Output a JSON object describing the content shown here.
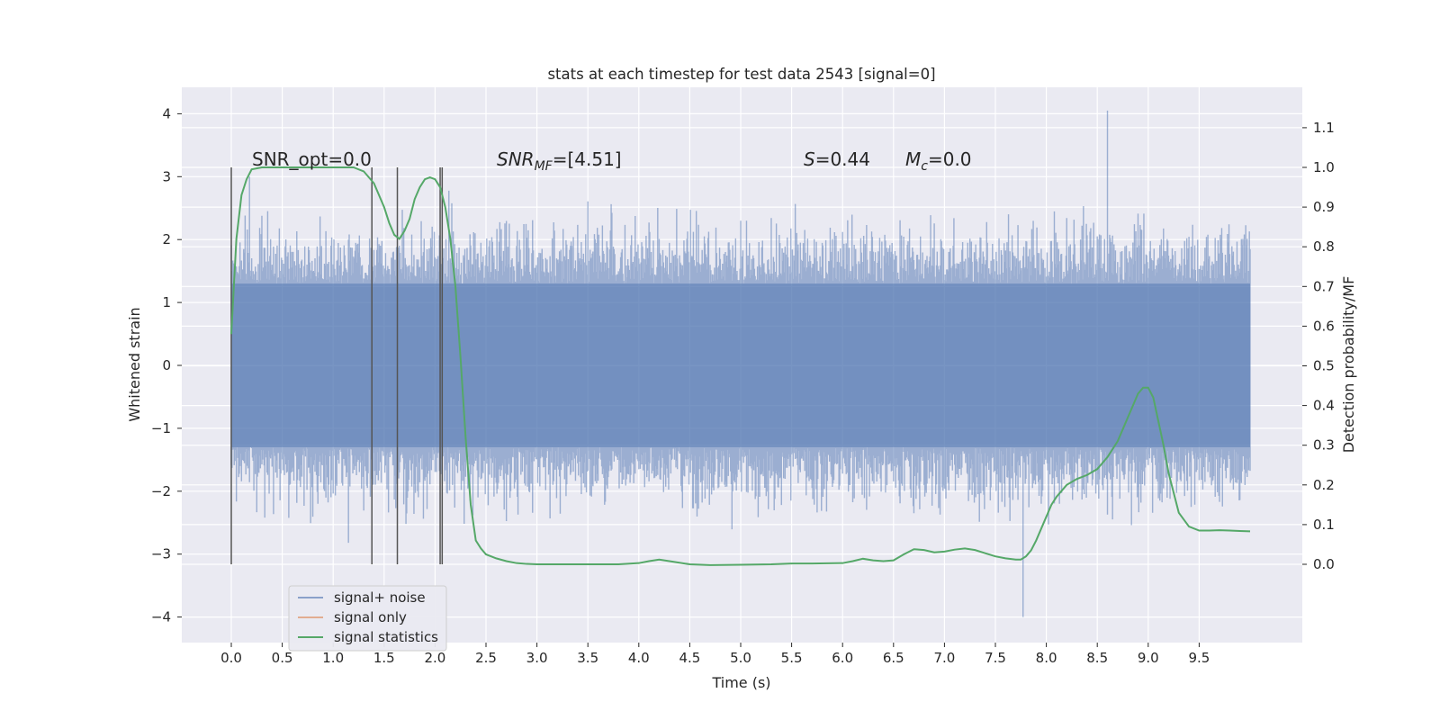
{
  "chart_data": {
    "type": "line",
    "title": "stats at each timestep for test data 2543 [signal=0]",
    "xlabel": "Time (s)",
    "ylabel": "Whitened strain",
    "y2label": "Detection probability/MF",
    "xlim": [
      -0.48,
      10.5
    ],
    "ylim": [
      -4.4,
      4.4
    ],
    "y2lim": [
      -0.2,
      1.2
    ],
    "xticks": [
      "0.0",
      "0.5",
      "1.0",
      "1.5",
      "2.0",
      "2.5",
      "3.0",
      "3.5",
      "4.0",
      "4.5",
      "5.0",
      "5.5",
      "6.0",
      "6.5",
      "7.0",
      "7.5",
      "8.0",
      "8.5",
      "9.0",
      "9.5"
    ],
    "yticks": [
      "4",
      "3",
      "2",
      "1",
      "0",
      "−1",
      "−2",
      "−3",
      "−4"
    ],
    "y2ticks": [
      "1.1",
      "1.0",
      "0.9",
      "0.8",
      "0.7",
      "0.6",
      "0.5",
      "0.4",
      "0.3",
      "0.2",
      "0.1",
      "0.0"
    ],
    "grid": true,
    "legend_position": "lower-left",
    "background": "#eaeaf2",
    "colors": {
      "noise": "#4c72b0",
      "signal_only": "#dd8452",
      "statistics": "#55a868",
      "vlines": "#555555"
    },
    "annotations": {
      "snr_opt": "SNR_opt=0.0",
      "snr_mf_main": "SNR",
      "snr_mf_sub": "MF",
      "snr_mf_rest": "=[4.51]",
      "s_main": "S",
      "s_rest": "=0.44",
      "mc_main": "M",
      "mc_sub": "c",
      "mc_rest": "=0.0"
    },
    "vertical_lines": [
      0.0,
      1.38,
      1.63,
      2.05,
      2.07
    ],
    "noise": {
      "name": "signal+ noise",
      "x_range": [
        0.0,
        10.0
      ],
      "typical_band": [
        -1.3,
        1.3
      ],
      "max_peak": [
        8.6,
        4.05
      ],
      "min_peak": [
        7.77,
        -4.0
      ]
    },
    "series": [
      {
        "name": "signal+ noise",
        "kind": "noise"
      },
      {
        "name": "signal only",
        "kind": "line",
        "x": [],
        "y": []
      },
      {
        "name": "signal statistics",
        "kind": "line",
        "axis": "right",
        "x": [
          0.0,
          0.05,
          0.1,
          0.15,
          0.2,
          0.3,
          0.4,
          0.5,
          0.6,
          0.7,
          0.8,
          0.9,
          1.0,
          1.1,
          1.2,
          1.3,
          1.4,
          1.5,
          1.55,
          1.6,
          1.65,
          1.7,
          1.75,
          1.8,
          1.85,
          1.9,
          1.95,
          2.0,
          2.05,
          2.1,
          2.15,
          2.2,
          2.25,
          2.3,
          2.35,
          2.4,
          2.45,
          2.5,
          2.55,
          2.6,
          2.7,
          2.8,
          2.9,
          3.0,
          3.2,
          3.5,
          3.8,
          4.0,
          4.1,
          4.2,
          4.3,
          4.5,
          4.7,
          5.0,
          5.3,
          5.5,
          5.7,
          6.0,
          6.1,
          6.2,
          6.3,
          6.4,
          6.5,
          6.6,
          6.7,
          6.8,
          6.9,
          7.0,
          7.1,
          7.2,
          7.3,
          7.4,
          7.5,
          7.6,
          7.7,
          7.75,
          7.8,
          7.85,
          7.9,
          7.95,
          8.0,
          8.05,
          8.1,
          8.2,
          8.3,
          8.4,
          8.5,
          8.6,
          8.7,
          8.75,
          8.8,
          8.85,
          8.9,
          8.95,
          9.0,
          9.05,
          9.1,
          9.15,
          9.2,
          9.3,
          9.4,
          9.5,
          9.6,
          9.7,
          9.8,
          9.9,
          10.0
        ],
        "y": [
          0.58,
          0.82,
          0.93,
          0.97,
          0.995,
          1.0,
          1.0,
          1.0,
          1.0,
          1.0,
          1.0,
          1.0,
          1.0,
          1.0,
          1.0,
          0.99,
          0.96,
          0.9,
          0.86,
          0.83,
          0.82,
          0.84,
          0.87,
          0.92,
          0.95,
          0.97,
          0.975,
          0.97,
          0.95,
          0.9,
          0.82,
          0.7,
          0.52,
          0.32,
          0.15,
          0.06,
          0.04,
          0.025,
          0.02,
          0.015,
          0.008,
          0.003,
          0.001,
          0.0,
          0.0,
          0.0,
          0.0,
          0.003,
          0.008,
          0.012,
          0.008,
          0.0,
          -0.002,
          -0.001,
          0.0,
          0.002,
          0.002,
          0.003,
          0.008,
          0.014,
          0.01,
          0.008,
          0.01,
          0.025,
          0.038,
          0.036,
          0.03,
          0.032,
          0.037,
          0.04,
          0.036,
          0.028,
          0.02,
          0.015,
          0.012,
          0.012,
          0.02,
          0.035,
          0.06,
          0.09,
          0.12,
          0.15,
          0.17,
          0.2,
          0.215,
          0.225,
          0.24,
          0.27,
          0.31,
          0.34,
          0.37,
          0.4,
          0.43,
          0.445,
          0.445,
          0.42,
          0.36,
          0.3,
          0.23,
          0.13,
          0.095,
          0.085,
          0.085,
          0.086,
          0.085,
          0.084,
          0.083
        ]
      }
    ]
  }
}
